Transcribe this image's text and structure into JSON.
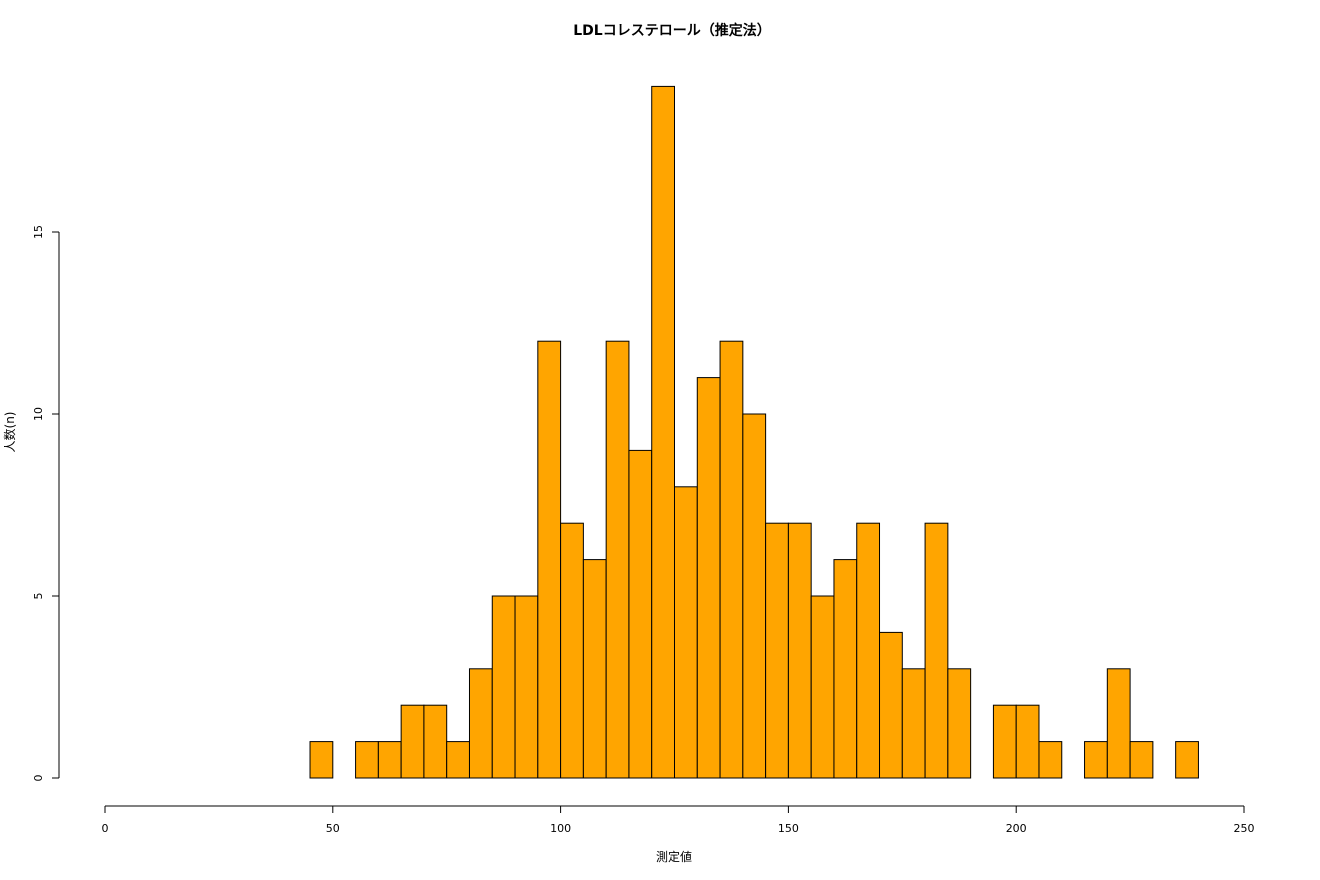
{
  "chart_data": {
    "type": "bar",
    "title": "LDLコレステロール（推定法）",
    "xlabel": "測定値",
    "ylabel": "人数(n)",
    "bar_color": "#FFA500",
    "border_color": "#000000",
    "xlim": [
      0,
      250
    ],
    "ylim": [
      0,
      20
    ],
    "x_ticks": [
      "0",
      "50",
      "100",
      "150",
      "200",
      "250"
    ],
    "y_ticks": [
      "0",
      "5",
      "10",
      "15"
    ],
    "bin_width": 5,
    "bins": [
      {
        "start": 45,
        "count": 1
      },
      {
        "start": 50,
        "count": 0
      },
      {
        "start": 55,
        "count": 1
      },
      {
        "start": 60,
        "count": 1
      },
      {
        "start": 65,
        "count": 2
      },
      {
        "start": 70,
        "count": 2
      },
      {
        "start": 75,
        "count": 1
      },
      {
        "start": 80,
        "count": 3
      },
      {
        "start": 85,
        "count": 5
      },
      {
        "start": 90,
        "count": 5
      },
      {
        "start": 95,
        "count": 12
      },
      {
        "start": 100,
        "count": 7
      },
      {
        "start": 105,
        "count": 6
      },
      {
        "start": 110,
        "count": 12
      },
      {
        "start": 115,
        "count": 9
      },
      {
        "start": 120,
        "count": 19
      },
      {
        "start": 125,
        "count": 8
      },
      {
        "start": 130,
        "count": 11
      },
      {
        "start": 135,
        "count": 12
      },
      {
        "start": 140,
        "count": 10
      },
      {
        "start": 145,
        "count": 7
      },
      {
        "start": 150,
        "count": 7
      },
      {
        "start": 155,
        "count": 5
      },
      {
        "start": 160,
        "count": 6
      },
      {
        "start": 165,
        "count": 7
      },
      {
        "start": 170,
        "count": 4
      },
      {
        "start": 175,
        "count": 3
      },
      {
        "start": 180,
        "count": 7
      },
      {
        "start": 185,
        "count": 3
      },
      {
        "start": 190,
        "count": 0
      },
      {
        "start": 195,
        "count": 2
      },
      {
        "start": 200,
        "count": 2
      },
      {
        "start": 205,
        "count": 1
      },
      {
        "start": 210,
        "count": 0
      },
      {
        "start": 215,
        "count": 1
      },
      {
        "start": 220,
        "count": 3
      },
      {
        "start": 225,
        "count": 1
      },
      {
        "start": 230,
        "count": 0
      },
      {
        "start": 235,
        "count": 1
      }
    ]
  }
}
